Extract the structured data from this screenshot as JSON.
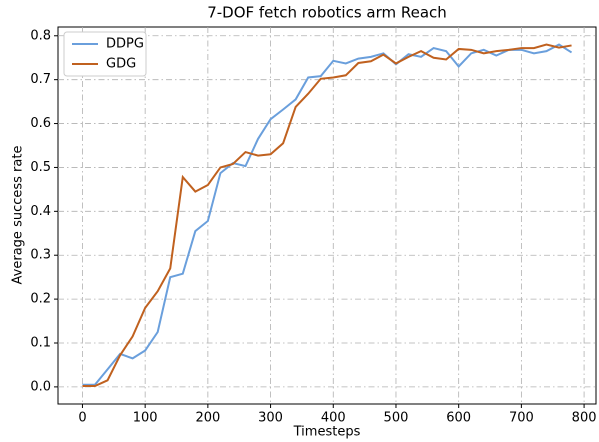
{
  "chart_data": {
    "type": "line",
    "title": "7-DOF fetch robotics arm Reach",
    "x_label": "Timesteps",
    "y_label": "Average success rate",
    "x": [
      0,
      20,
      40,
      60,
      80,
      100,
      120,
      140,
      160,
      180,
      200,
      220,
      240,
      260,
      280,
      300,
      320,
      340,
      360,
      380,
      400,
      420,
      440,
      460,
      480,
      500,
      520,
      540,
      560,
      580,
      600,
      620,
      640,
      660,
      680,
      700,
      720,
      740,
      760,
      780
    ],
    "series": [
      {
        "name": "DDPG",
        "color": "#6a9fdc",
        "values": [
          0.005,
          0.005,
          0.04,
          0.075,
          0.065,
          0.083,
          0.125,
          0.25,
          0.258,
          0.355,
          0.378,
          0.487,
          0.51,
          0.503,
          0.565,
          0.61,
          0.632,
          0.655,
          0.705,
          0.708,
          0.743,
          0.737,
          0.748,
          0.752,
          0.76,
          0.735,
          0.758,
          0.752,
          0.772,
          0.765,
          0.73,
          0.76,
          0.768,
          0.755,
          0.768,
          0.768,
          0.76,
          0.765,
          0.78,
          0.762
        ]
      },
      {
        "name": "GDG",
        "color": "#c0611f",
        "values": [
          0.002,
          0.002,
          0.015,
          0.072,
          0.115,
          0.18,
          0.218,
          0.27,
          0.478,
          0.445,
          0.46,
          0.5,
          0.508,
          0.535,
          0.527,
          0.53,
          0.555,
          0.638,
          0.668,
          0.702,
          0.705,
          0.71,
          0.738,
          0.742,
          0.757,
          0.737,
          0.752,
          0.765,
          0.75,
          0.746,
          0.77,
          0.768,
          0.76,
          0.765,
          0.768,
          0.772,
          0.772,
          0.78,
          0.773,
          0.778
        ]
      }
    ],
    "xlim": [
      -39,
      819
    ],
    "ylim": [
      -0.039,
      0.82
    ],
    "xticks": [
      0,
      100,
      200,
      300,
      400,
      500,
      600,
      700,
      800
    ],
    "yticks": [
      {
        "value": 0,
        "label": "0.0"
      },
      0.1,
      0.2,
      0.3,
      0.4,
      0.5,
      0.6,
      0.7,
      0.8
    ],
    "grid": true,
    "legend": "upper left"
  }
}
